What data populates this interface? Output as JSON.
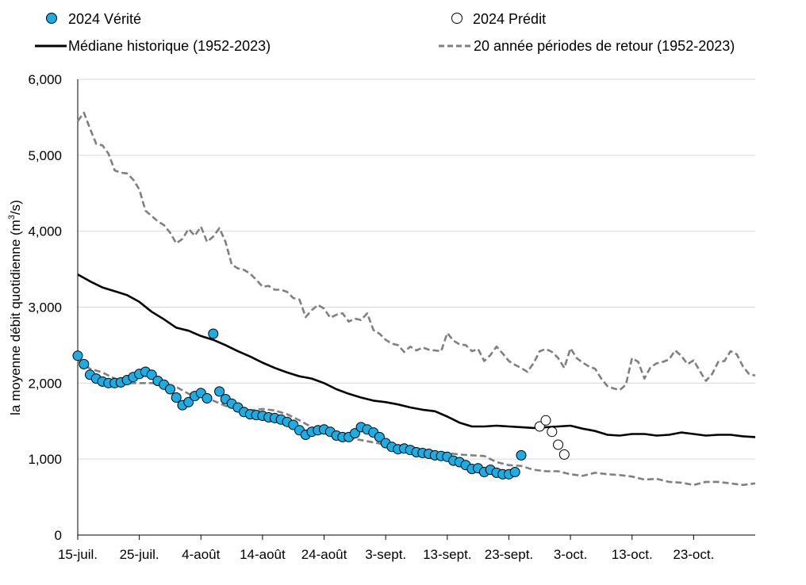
{
  "chart_data": {
    "type": "line",
    "ylabel_main": "la moyenne débit quotidienne (m",
    "ylabel_sup": "3",
    "ylabel_end": "/s)",
    "ylim": [
      0,
      6000
    ],
    "yticks": [
      0,
      1000,
      2000,
      3000,
      4000,
      5000,
      6000
    ],
    "ytick_labels": [
      "0",
      "1,000",
      "2,000",
      "3,000",
      "4,000",
      "5,000",
      "6,000"
    ],
    "xlim": [
      0,
      110
    ],
    "xticks": [
      0,
      10,
      20,
      30,
      40,
      50,
      60,
      70,
      80,
      90,
      100
    ],
    "xtick_labels": [
      "15-juil.",
      "25-juil.",
      "4-août",
      "14-août",
      "24-août",
      "3-sept.",
      "13-sept.",
      "23-sept.",
      "3-oct.",
      "13-oct.",
      "23-oct."
    ],
    "grid": "horizontal",
    "legend": "top",
    "series": [
      {
        "name": "2024 Vérité",
        "kind": "points",
        "color": "#1aaee5",
        "x": [
          0,
          1,
          2,
          3,
          4,
          5,
          6,
          7,
          8,
          9,
          10,
          11,
          12,
          13,
          14,
          15,
          16,
          17,
          18,
          19,
          20,
          21,
          22,
          23,
          24,
          25,
          26,
          27,
          28,
          29,
          30,
          31,
          32,
          33,
          34,
          35,
          36,
          37,
          38,
          39,
          40,
          41,
          42,
          43,
          44,
          45,
          46,
          47,
          48,
          49,
          50,
          51,
          52,
          53,
          54,
          55,
          56,
          57,
          58,
          59,
          60,
          61,
          62,
          63,
          64,
          65,
          66,
          67,
          68,
          69,
          70,
          71,
          72,
          73
        ],
        "y": [
          2360,
          2250,
          2110,
          2060,
          2020,
          2000,
          2000,
          2010,
          2040,
          2080,
          2120,
          2150,
          2110,
          2030,
          1980,
          1920,
          1810,
          1710,
          1750,
          1830,
          1870,
          1800,
          2650,
          1890,
          1790,
          1730,
          1680,
          1620,
          1590,
          1580,
          1570,
          1550,
          1540,
          1520,
          1490,
          1450,
          1380,
          1320,
          1360,
          1380,
          1390,
          1360,
          1310,
          1290,
          1290,
          1340,
          1420,
          1390,
          1350,
          1290,
          1210,
          1160,
          1130,
          1140,
          1120,
          1090,
          1080,
          1070,
          1050,
          1040,
          1030,
          980,
          960,
          920,
          870,
          880,
          830,
          860,
          820,
          800,
          800,
          830,
          1050,
          null
        ]
      },
      {
        "name": "2024 Prédit",
        "kind": "points",
        "color": "#ffffff",
        "x": [
          75,
          76,
          77,
          78,
          79
        ],
        "y": [
          1430,
          1510,
          1360,
          1190,
          1060
        ]
      },
      {
        "name": "Médiane historique (1952-2023)",
        "kind": "line",
        "color": "#000000",
        "x": [
          0,
          2,
          4,
          6,
          8,
          10,
          12,
          14,
          16,
          18,
          20,
          22,
          24,
          26,
          28,
          30,
          32,
          34,
          36,
          38,
          40,
          42,
          44,
          46,
          48,
          50,
          52,
          54,
          56,
          58,
          60,
          62,
          64,
          66,
          68,
          70,
          72,
          74,
          76,
          78,
          80,
          82,
          84,
          86,
          88,
          90,
          92,
          94,
          96,
          98,
          100,
          102,
          104,
          106,
          108,
          110
        ],
        "y": [
          3430,
          3340,
          3260,
          3210,
          3160,
          3070,
          2940,
          2840,
          2730,
          2690,
          2620,
          2570,
          2500,
          2420,
          2350,
          2270,
          2200,
          2140,
          2090,
          2060,
          2000,
          1920,
          1860,
          1810,
          1770,
          1750,
          1720,
          1680,
          1650,
          1630,
          1560,
          1480,
          1430,
          1430,
          1440,
          1430,
          1420,
          1410,
          1420,
          1430,
          1440,
          1400,
          1370,
          1320,
          1310,
          1330,
          1330,
          1310,
          1320,
          1350,
          1330,
          1310,
          1320,
          1320,
          1300,
          1290
        ]
      },
      {
        "name": "20 année périodes de retour (1952-2023)",
        "kind": "dashed",
        "color": "#7f7f7f",
        "x": [
          0,
          1,
          2,
          3,
          4,
          5,
          6,
          7,
          8,
          9,
          10,
          11,
          12,
          13,
          14,
          15,
          16,
          17,
          18,
          19,
          20,
          21,
          22,
          23,
          24,
          25,
          26,
          27,
          28,
          29,
          30,
          31,
          32,
          33,
          34,
          35,
          36,
          37,
          38,
          39,
          40,
          41,
          42,
          43,
          44,
          45,
          46,
          47,
          48,
          49,
          50,
          51,
          52,
          53,
          54,
          55,
          56,
          57,
          58,
          59,
          60,
          61,
          62,
          63,
          64,
          65,
          66,
          67,
          68,
          69,
          70,
          71,
          72,
          73,
          74,
          75,
          76,
          77,
          78,
          79,
          80,
          81,
          82,
          83,
          84,
          85,
          86,
          87,
          88,
          89,
          90,
          91,
          92,
          93,
          94,
          95,
          96,
          97,
          98,
          99,
          100,
          101,
          102,
          103,
          104,
          105,
          106,
          107,
          108,
          109,
          110
        ],
        "y": [
          5450,
          5560,
          5350,
          5150,
          5130,
          5020,
          4800,
          4770,
          4760,
          4680,
          4550,
          4270,
          4200,
          4130,
          4080,
          3980,
          3840,
          3900,
          4030,
          3940,
          4060,
          3860,
          3930,
          4040,
          3860,
          3560,
          3510,
          3490,
          3440,
          3360,
          3270,
          3280,
          3230,
          3230,
          3200,
          3120,
          3100,
          2870,
          2960,
          3030,
          2980,
          2860,
          2900,
          2920,
          2810,
          2850,
          2830,
          2920,
          2700,
          2650,
          2570,
          2520,
          2500,
          2410,
          2480,
          2430,
          2470,
          2440,
          2430,
          2420,
          2660,
          2560,
          2510,
          2500,
          2420,
          2450,
          2290,
          2370,
          2480,
          2390,
          2290,
          2240,
          2200,
          2150,
          2260,
          2420,
          2450,
          2410,
          2330,
          2200,
          2460,
          2330,
          2270,
          2220,
          2190,
          2060,
          1960,
          1930,
          1910,
          1980,
          2330,
          2280,
          2060,
          2210,
          2260,
          2280,
          2310,
          2430,
          2360,
          2250,
          2300,
          2160,
          2030,
          2120,
          2280,
          2290,
          2420,
          2380,
          2220,
          2120,
          2100
        ]
      },
      {
        "name": "",
        "kind": "dashed-low",
        "color": "#7f7f7f",
        "x": [
          0,
          2,
          4,
          6,
          8,
          10,
          12,
          14,
          16,
          18,
          20,
          22,
          24,
          26,
          28,
          30,
          32,
          34,
          36,
          38,
          40,
          42,
          44,
          46,
          48,
          50,
          52,
          54,
          56,
          58,
          60,
          62,
          64,
          66,
          68,
          70,
          72,
          74,
          76,
          78,
          80,
          82,
          84,
          86,
          88,
          90,
          92,
          94,
          96,
          98,
          100,
          102,
          104,
          106,
          108,
          110
        ],
        "y": [
          2290,
          2190,
          2140,
          2060,
          2000,
          2000,
          2000,
          1990,
          1950,
          1860,
          1810,
          1770,
          1700,
          1660,
          1640,
          1660,
          1640,
          1590,
          1510,
          1420,
          1350,
          1310,
          1280,
          1250,
          1220,
          1190,
          1180,
          1160,
          1120,
          1090,
          1080,
          1060,
          1050,
          1040,
          960,
          920,
          910,
          860,
          840,
          840,
          800,
          780,
          820,
          800,
          790,
          770,
          730,
          740,
          700,
          690,
          660,
          700,
          700,
          680,
          660,
          680
        ]
      }
    ]
  }
}
